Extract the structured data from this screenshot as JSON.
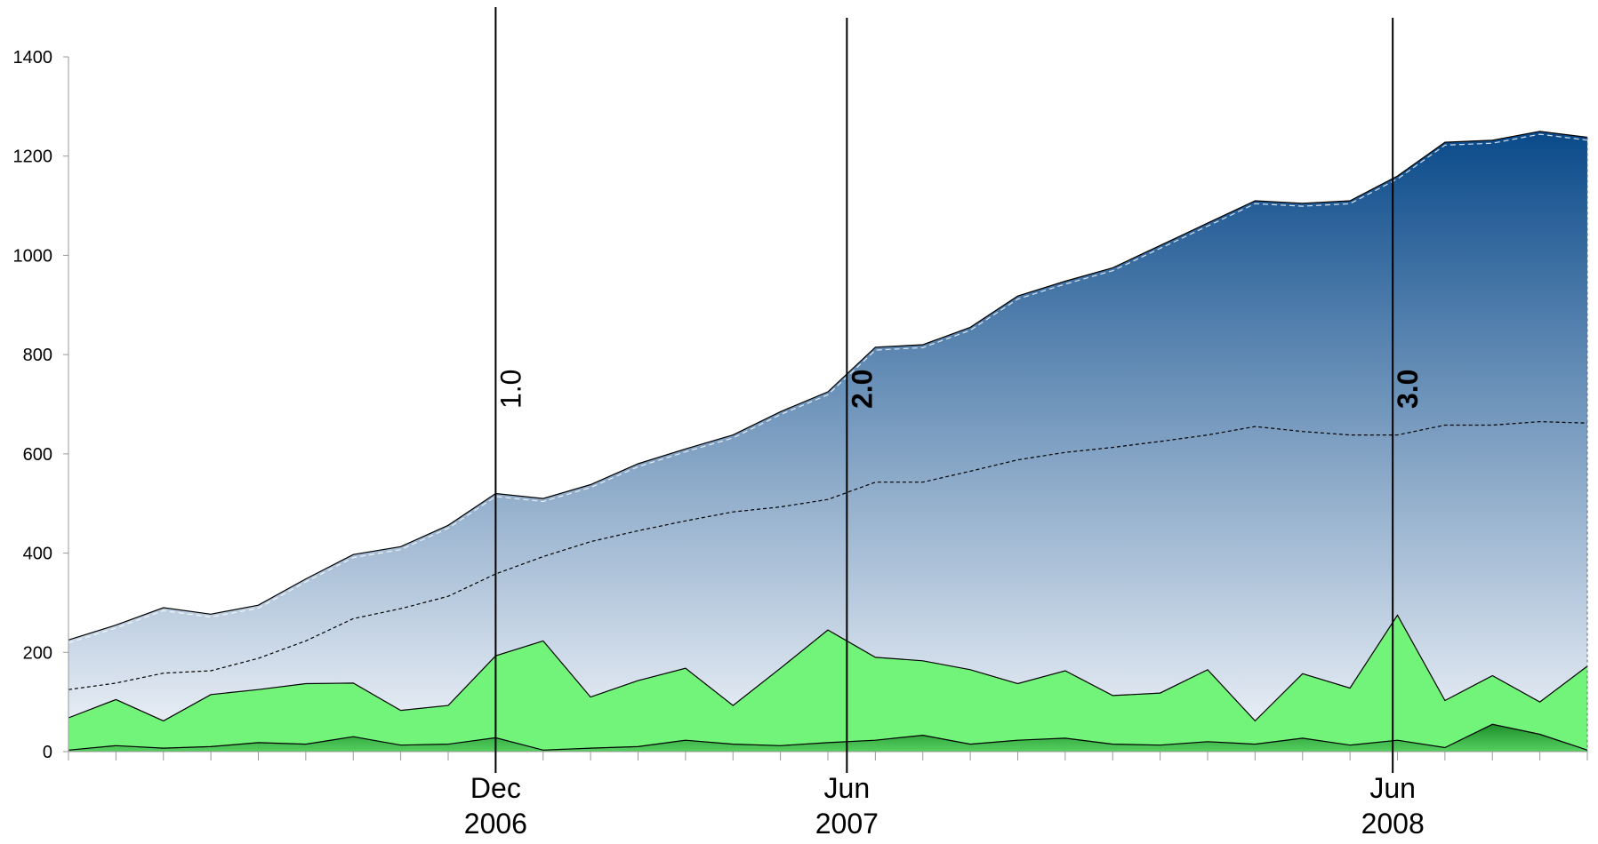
{
  "chart_data": {
    "type": "area",
    "ylim": [
      0,
      1400
    ],
    "yticks": [
      0,
      200,
      400,
      600,
      800,
      1000,
      1200,
      1400
    ],
    "x": [
      0,
      1,
      2,
      3,
      4,
      5,
      6,
      7,
      8,
      9,
      10,
      11,
      12,
      13,
      14,
      15,
      16,
      17,
      18,
      19,
      20,
      21,
      22,
      23,
      24,
      25,
      26,
      27,
      28,
      29,
      30,
      31,
      32
    ],
    "xlim": [
      0,
      32
    ],
    "x_tick_labels": [
      {
        "x": 9,
        "line1": "Dec",
        "line2": "2006"
      },
      {
        "x": 16.4,
        "line1": "Jun",
        "line2": "2007"
      },
      {
        "x": 27.9,
        "line1": "Jun",
        "line2": "2008"
      }
    ],
    "releases": [
      {
        "x": 9,
        "label": "1.0",
        "bold": false
      },
      {
        "x": 16.4,
        "label": "2.0",
        "bold": true
      },
      {
        "x": 27.9,
        "label": "3.0",
        "bold": true
      }
    ],
    "series": [
      {
        "style": "total-area",
        "values": [
          225,
          255,
          290,
          277,
          295,
          348,
          397,
          413,
          456,
          520,
          510,
          538,
          580,
          610,
          638,
          685,
          725,
          815,
          820,
          855,
          918,
          948,
          975,
          1020,
          1065,
          1110,
          1105,
          1110,
          1160,
          1228,
          1232,
          1250,
          1238
        ]
      },
      {
        "style": "dashed-line",
        "values": [
          125,
          138,
          158,
          163,
          188,
          223,
          268,
          288,
          313,
          358,
          393,
          423,
          445,
          465,
          483,
          493,
          508,
          543,
          543,
          565,
          588,
          603,
          613,
          625,
          638,
          655,
          645,
          638,
          638,
          658,
          658,
          665,
          662
        ]
      },
      {
        "style": "bright-green-area",
        "values": [
          68,
          105,
          62,
          115,
          125,
          137,
          138,
          83,
          93,
          193,
          223,
          110,
          143,
          168,
          93,
          168,
          245,
          190,
          183,
          165,
          137,
          163,
          113,
          118,
          165,
          62,
          157,
          128,
          275,
          103,
          153,
          100,
          172
        ]
      },
      {
        "style": "dark-green-area",
        "values": [
          3,
          12,
          7,
          10,
          18,
          15,
          30,
          13,
          15,
          28,
          3,
          7,
          10,
          23,
          15,
          12,
          18,
          23,
          33,
          15,
          23,
          27,
          15,
          13,
          20,
          15,
          27,
          13,
          23,
          8,
          55,
          35,
          3
        ]
      }
    ],
    "colors": {
      "blue_top": "#0a4a8a",
      "blue_bottom": "#f2f5fa",
      "bright_green": "#72f47a",
      "dark_green": "#2ea838",
      "line": "#000000"
    }
  }
}
